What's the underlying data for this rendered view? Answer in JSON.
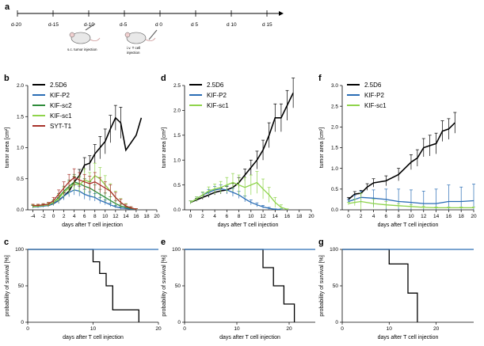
{
  "timeline": {
    "letter": "a",
    "labels": [
      "d-20",
      "d-15",
      "d-10",
      "d-5",
      "d 0",
      "d 5",
      "d 10",
      "d 15"
    ],
    "caption_tumor": "s.c. tumor injection",
    "caption_tcell_1": "i.v. T cell",
    "caption_tcell_2": "injection"
  },
  "colors": {
    "2.5D6": "#000000",
    "KIF-P2": "#2a6db5",
    "KIF-sc2": "#2e8b3a",
    "KIF-sc1": "#8fd44b",
    "SYT-T1": "#a8322a",
    "control": "#2a6db5"
  },
  "chart_data": [
    {
      "letter": "b",
      "type": "line",
      "xlabel": "days after T cell injection",
      "ylabel": "tumor area [cm²]",
      "xlim": [
        -5,
        20
      ],
      "ylim": [
        0,
        2.0
      ],
      "xticks": [
        "-4",
        "-2",
        "0",
        "2",
        "4",
        "6",
        "8",
        "10",
        "12",
        "14",
        "16",
        "18",
        "20"
      ],
      "xtick_values": [
        -4,
        -2,
        0,
        2,
        4,
        6,
        8,
        10,
        12,
        14,
        16,
        18,
        20
      ],
      "yticks": [
        "0.0",
        "0.5",
        "1.0",
        "1.5",
        "2.0"
      ],
      "ytick_values": [
        0,
        0.5,
        1.0,
        1.5,
        2.0
      ],
      "series": [
        {
          "name": "2.5D6",
          "color_key": "2.5D6",
          "x": [
            -4,
            -3,
            -2,
            -1,
            0,
            1,
            2,
            3,
            4,
            5,
            6,
            7,
            8,
            9,
            10,
            11,
            12,
            13,
            14,
            16,
            17
          ],
          "y": [
            0.06,
            0.06,
            0.07,
            0.07,
            0.1,
            0.15,
            0.22,
            0.3,
            0.45,
            0.55,
            0.72,
            0.75,
            0.9,
            1.0,
            1.1,
            1.3,
            1.48,
            1.4,
            0.96,
            1.2,
            1.48
          ],
          "err": [
            0.02,
            0.02,
            0.02,
            0.02,
            0.03,
            0.04,
            0.05,
            0.06,
            0.08,
            0.1,
            0.12,
            0.12,
            0.15,
            0.18,
            0.2,
            0.22,
            0.2,
            0.25,
            0,
            0,
            0
          ]
        },
        {
          "name": "KIF-P2",
          "color_key": "KIF-P2",
          "x": [
            -4,
            -3,
            -2,
            -1,
            0,
            1,
            2,
            3,
            4,
            5,
            6,
            7,
            8,
            9,
            10,
            11,
            12,
            13,
            14,
            15,
            16
          ],
          "y": [
            0.05,
            0.05,
            0.06,
            0.07,
            0.1,
            0.15,
            0.22,
            0.28,
            0.32,
            0.3,
            0.25,
            0.22,
            0.2,
            0.15,
            0.12,
            0.08,
            0.05,
            0.03,
            0.02,
            0.01,
            0.01
          ],
          "err": [
            0.02,
            0.02,
            0.02,
            0.02,
            0.03,
            0.05,
            0.06,
            0.07,
            0.08,
            0.08,
            0.08,
            0.07,
            0.06,
            0.05,
            0.04,
            0.03,
            0.02,
            0.02,
            0.01,
            0.01,
            0.01
          ]
        },
        {
          "name": "KIF-sc2",
          "color_key": "KIF-sc2",
          "x": [
            -4,
            -3,
            -2,
            -1,
            0,
            1,
            2,
            3,
            4,
            5,
            6,
            7,
            8,
            9,
            10,
            11,
            12,
            13,
            14,
            15,
            16
          ],
          "y": [
            0.05,
            0.06,
            0.07,
            0.08,
            0.12,
            0.2,
            0.3,
            0.38,
            0.45,
            0.42,
            0.38,
            0.35,
            0.3,
            0.25,
            0.2,
            0.15,
            0.1,
            0.06,
            0.04,
            0.02,
            0.01
          ],
          "err": [
            0.02,
            0.02,
            0.02,
            0.03,
            0.04,
            0.06,
            0.08,
            0.1,
            0.12,
            0.12,
            0.12,
            0.1,
            0.1,
            0.08,
            0.07,
            0.06,
            0.05,
            0.03,
            0.02,
            0.01,
            0.01
          ]
        },
        {
          "name": "KIF-sc1",
          "color_key": "KIF-sc1",
          "x": [
            -4,
            -3,
            -2,
            -1,
            0,
            1,
            2,
            3,
            4,
            5,
            6,
            7,
            8,
            9,
            10,
            11,
            12,
            13,
            14,
            15,
            16
          ],
          "y": [
            0.06,
            0.06,
            0.07,
            0.08,
            0.12,
            0.18,
            0.28,
            0.35,
            0.42,
            0.4,
            0.48,
            0.45,
            0.55,
            0.5,
            0.4,
            0.3,
            0.2,
            0.12,
            0.06,
            0.03,
            0.01
          ],
          "err": [
            0.02,
            0.02,
            0.02,
            0.03,
            0.04,
            0.06,
            0.08,
            0.1,
            0.12,
            0.12,
            0.18,
            0.15,
            0.2,
            0.18,
            0.15,
            0.12,
            0.1,
            0.06,
            0.04,
            0.02,
            0.01
          ]
        },
        {
          "name": "SYT-T1",
          "color_key": "SYT-T1",
          "x": [
            -4,
            -3,
            -2,
            -1,
            0,
            1,
            2,
            3,
            4,
            5,
            6,
            7,
            8,
            9,
            10,
            11,
            12,
            13,
            14,
            15,
            16
          ],
          "y": [
            0.07,
            0.07,
            0.08,
            0.09,
            0.15,
            0.25,
            0.35,
            0.45,
            0.52,
            0.48,
            0.45,
            0.42,
            0.45,
            0.4,
            0.35,
            0.3,
            0.2,
            0.12,
            0.06,
            0.03,
            0.01
          ],
          "err": [
            0.02,
            0.02,
            0.02,
            0.03,
            0.05,
            0.07,
            0.1,
            0.12,
            0.14,
            0.12,
            0.12,
            0.12,
            0.15,
            0.12,
            0.1,
            0.1,
            0.08,
            0.05,
            0.03,
            0.02,
            0.01
          ]
        }
      ]
    },
    {
      "letter": "d",
      "type": "line",
      "xlabel": "days after T cell injection",
      "ylabel": "tumor area [cm²]",
      "xlim": [
        -1,
        20
      ],
      "ylim": [
        0,
        2.5
      ],
      "xticks": [
        "0",
        "2",
        "4",
        "6",
        "8",
        "10",
        "12",
        "14",
        "16",
        "18",
        "20"
      ],
      "xtick_values": [
        0,
        2,
        4,
        6,
        8,
        10,
        12,
        14,
        16,
        18,
        20
      ],
      "yticks": [
        "0.0",
        "0.5",
        "1.0",
        "1.5",
        "2.0",
        "2.5"
      ],
      "ytick_values": [
        0,
        0.5,
        1.0,
        1.5,
        2.0,
        2.5
      ],
      "series": [
        {
          "name": "2.5D6",
          "color_key": "2.5D6",
          "x": [
            0,
            1,
            2,
            3,
            4,
            5,
            6,
            7,
            8,
            9,
            10,
            11,
            12,
            13,
            14,
            15,
            16,
            17
          ],
          "y": [
            0.15,
            0.2,
            0.25,
            0.3,
            0.35,
            0.38,
            0.4,
            0.45,
            0.55,
            0.7,
            0.85,
            1.0,
            1.2,
            1.5,
            1.85,
            1.85,
            2.1,
            2.35
          ],
          "err": [
            0.03,
            0.03,
            0.04,
            0.05,
            0.05,
            0.06,
            0.07,
            0.08,
            0.1,
            0.12,
            0.15,
            0.18,
            0.2,
            0.25,
            0.28,
            0.28,
            0.3,
            0.3
          ]
        },
        {
          "name": "KIF-P2",
          "color_key": "KIF-P2",
          "x": [
            0,
            1,
            2,
            3,
            4,
            5,
            6,
            7,
            8,
            9,
            10,
            11,
            12,
            13,
            14,
            15
          ],
          "y": [
            0.15,
            0.22,
            0.3,
            0.35,
            0.4,
            0.42,
            0.4,
            0.35,
            0.3,
            0.22,
            0.15,
            0.1,
            0.06,
            0.03,
            0.01,
            0.01
          ],
          "err": [
            0.03,
            0.04,
            0.05,
            0.06,
            0.07,
            0.08,
            0.08,
            0.08,
            0.07,
            0.06,
            0.05,
            0.04,
            0.03,
            0.02,
            0.01,
            0.01
          ]
        },
        {
          "name": "KIF-sc1",
          "color_key": "KIF-sc1",
          "x": [
            0,
            1,
            2,
            3,
            4,
            5,
            6,
            7,
            8,
            9,
            10,
            11,
            12,
            13,
            14,
            15,
            16
          ],
          "y": [
            0.15,
            0.22,
            0.3,
            0.38,
            0.42,
            0.45,
            0.5,
            0.55,
            0.5,
            0.45,
            0.5,
            0.55,
            0.42,
            0.3,
            0.15,
            0.05,
            0.01
          ],
          "err": [
            0.03,
            0.04,
            0.06,
            0.08,
            0.1,
            0.12,
            0.15,
            0.18,
            0.2,
            0.2,
            0.2,
            0.22,
            0.2,
            0.15,
            0.1,
            0.05,
            0.01
          ]
        }
      ]
    },
    {
      "letter": "f",
      "type": "line",
      "xlabel": "days after T cell injection",
      "ylabel": "tumor area [cm²]",
      "xlim": [
        -1,
        20
      ],
      "ylim": [
        0,
        3.0
      ],
      "xticks": [
        "0",
        "2",
        "4",
        "6",
        "8",
        "10",
        "12",
        "14",
        "16",
        "18",
        "20"
      ],
      "xtick_values": [
        0,
        2,
        4,
        6,
        8,
        10,
        12,
        14,
        16,
        18,
        20
      ],
      "yticks": [
        "0.0",
        "0.5",
        "1.0",
        "1.5",
        "2.0",
        "2.5",
        "3.0"
      ],
      "ytick_values": [
        0,
        0.5,
        1.0,
        1.5,
        2.0,
        2.5,
        3.0
      ],
      "series": [
        {
          "name": "2.5D6",
          "color_key": "2.5D6",
          "x": [
            0,
            1,
            2,
            3,
            4,
            6,
            8,
            10,
            11,
            12,
            13,
            14,
            15,
            16,
            17
          ],
          "y": [
            0.25,
            0.38,
            0.4,
            0.55,
            0.65,
            0.7,
            0.85,
            1.15,
            1.25,
            1.5,
            1.55,
            1.6,
            1.9,
            1.95,
            2.1
          ],
          "err": [
            0.05,
            0.06,
            0.07,
            0.08,
            0.1,
            0.12,
            0.15,
            0.18,
            0.2,
            0.22,
            0.25,
            0.25,
            0.25,
            0.25,
            0.25
          ]
        },
        {
          "name": "KIF-P2",
          "color_key": "KIF-P2",
          "x": [
            0,
            1,
            2,
            4,
            6,
            8,
            10,
            12,
            14,
            16,
            18,
            20
          ],
          "y": [
            0.2,
            0.25,
            0.3,
            0.28,
            0.25,
            0.2,
            0.18,
            0.15,
            0.15,
            0.2,
            0.2,
            0.22
          ],
          "err": [
            0.05,
            0.1,
            0.15,
            0.2,
            0.25,
            0.3,
            0.3,
            0.3,
            0.35,
            0.4,
            0.35,
            0.4
          ]
        },
        {
          "name": "KIF-sc1",
          "color_key": "KIF-sc1",
          "x": [
            0,
            1,
            2,
            4,
            6,
            8,
            10,
            12,
            14,
            16,
            18,
            20
          ],
          "y": [
            0.15,
            0.18,
            0.2,
            0.15,
            0.12,
            0.1,
            0.08,
            0.06,
            0.05,
            0.05,
            0.05,
            0.05
          ],
          "err": [
            0.03,
            0.08,
            0.2,
            0.1,
            0.08,
            0.05,
            0.04,
            0.03,
            0.02,
            0.02,
            0.02,
            0.02
          ]
        }
      ]
    },
    {
      "letter": "c",
      "type": "line",
      "xlabel": "days after T cell injection",
      "ylabel": "probability of survival [%]",
      "xlim": [
        0,
        20
      ],
      "ylim": [
        0,
        100
      ],
      "xticks": [
        "0",
        "10",
        "20"
      ],
      "xtick_values": [
        0,
        10,
        20
      ],
      "yticks": [
        "0",
        "50",
        "100"
      ],
      "ytick_values": [
        0,
        50,
        100
      ],
      "series": [
        {
          "name": "2.5D6",
          "color_key": "2.5D6",
          "step": true,
          "x": [
            0,
            10,
            10,
            11,
            11,
            12,
            12,
            13,
            13,
            17,
            17
          ],
          "y": [
            100,
            100,
            83,
            83,
            67,
            67,
            50,
            50,
            17,
            17,
            0
          ]
        },
        {
          "name": "control",
          "color_key": "control",
          "step": false,
          "x": [
            0,
            20
          ],
          "y": [
            100,
            100
          ]
        }
      ]
    },
    {
      "letter": "e",
      "type": "line",
      "xlabel": "days after T cell injection",
      "ylabel": "probability of survival [%]",
      "xlim": [
        0,
        25
      ],
      "ylim": [
        0,
        100
      ],
      "xticks": [
        "0",
        "10",
        "20"
      ],
      "xtick_values": [
        0,
        10,
        20
      ],
      "yticks": [
        "0",
        "50",
        "100"
      ],
      "ytick_values": [
        0,
        50,
        100
      ],
      "series": [
        {
          "name": "2.5D6",
          "color_key": "2.5D6",
          "step": true,
          "x": [
            0,
            15,
            15,
            17,
            17,
            19,
            19,
            20,
            20,
            21,
            21
          ],
          "y": [
            100,
            100,
            75,
            75,
            50,
            50,
            25,
            25,
            25,
            25,
            0
          ]
        },
        {
          "name": "control",
          "color_key": "control",
          "step": false,
          "x": [
            0,
            25
          ],
          "y": [
            100,
            100
          ]
        }
      ]
    },
    {
      "letter": "g",
      "type": "line",
      "xlabel": "days after T cell injection",
      "ylabel": "probability of survival [%]",
      "xlim": [
        0,
        28
      ],
      "ylim": [
        0,
        100
      ],
      "xticks": [
        "0",
        "10",
        "20"
      ],
      "xtick_values": [
        0,
        10,
        20
      ],
      "yticks": [
        "0",
        "50",
        "100"
      ],
      "ytick_values": [
        0,
        50,
        100
      ],
      "series": [
        {
          "name": "2.5D6",
          "color_key": "2.5D6",
          "step": true,
          "x": [
            0,
            10,
            10,
            12,
            12,
            14,
            14,
            16,
            16
          ],
          "y": [
            100,
            100,
            80,
            80,
            80,
            80,
            40,
            40,
            0
          ]
        },
        {
          "name": "control",
          "color_key": "control",
          "step": false,
          "x": [
            0,
            28
          ],
          "y": [
            100,
            100
          ]
        }
      ]
    }
  ]
}
